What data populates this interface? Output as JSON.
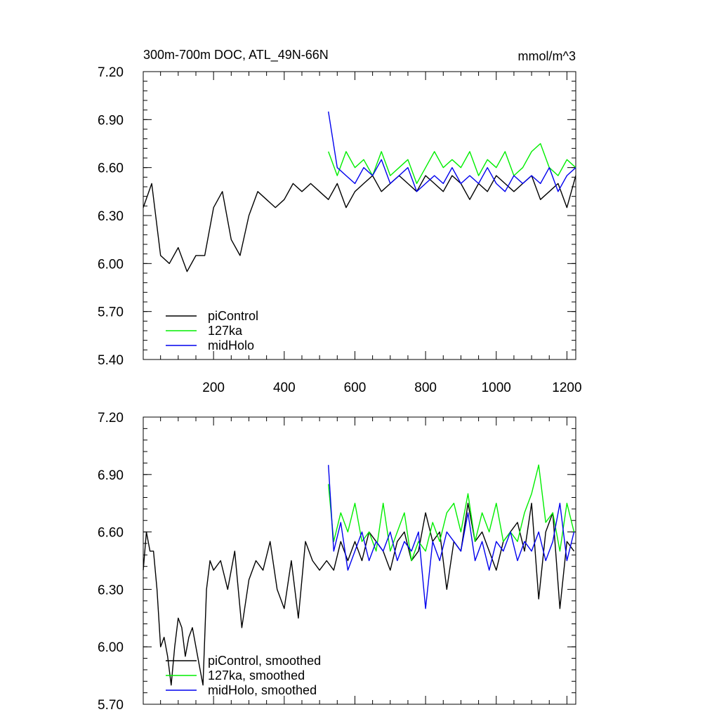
{
  "chart_data": [
    {
      "type": "line",
      "title": "300m-700m DOC, ATL_49N-66N",
      "units": "mmol/m^3",
      "xlim": [
        1,
        1225
      ],
      "ylim": [
        5.4,
        7.2
      ],
      "xticks": [
        200,
        400,
        600,
        800,
        1000,
        1200
      ],
      "xtick_labels": [
        "200",
        "400",
        "600",
        "800",
        "1000",
        "1200"
      ],
      "yticks": [
        5.4,
        5.7,
        6.0,
        6.3,
        6.6,
        6.9,
        7.2
      ],
      "ytick_labels": [
        "5.40",
        "5.70",
        "6.00",
        "6.30",
        "6.60",
        "6.90",
        "7.20"
      ],
      "legend": "bottom-left",
      "series": [
        {
          "name": "piControl",
          "color": "#000000",
          "x": [
            1,
            25,
            50,
            75,
            100,
            125,
            150,
            175,
            200,
            225,
            250,
            275,
            300,
            325,
            350,
            375,
            400,
            425,
            450,
            475,
            500,
            525,
            550,
            575,
            600,
            625,
            650,
            675,
            700,
            725,
            750,
            775,
            800,
            825,
            850,
            875,
            900,
            925,
            950,
            975,
            1000,
            1025,
            1050,
            1075,
            1100,
            1125,
            1150,
            1175,
            1200,
            1225
          ],
          "values": [
            6.35,
            6.5,
            6.05,
            6.0,
            6.1,
            5.95,
            6.05,
            6.05,
            6.35,
            6.45,
            6.15,
            6.05,
            6.3,
            6.45,
            6.4,
            6.35,
            6.4,
            6.5,
            6.45,
            6.5,
            6.45,
            6.4,
            6.5,
            6.35,
            6.45,
            6.5,
            6.55,
            6.45,
            6.5,
            6.55,
            6.5,
            6.45,
            6.55,
            6.5,
            6.45,
            6.55,
            6.5,
            6.4,
            6.5,
            6.45,
            6.55,
            6.5,
            6.45,
            6.5,
            6.55,
            6.4,
            6.45,
            6.5,
            6.35,
            6.55
          ]
        },
        {
          "name": "127ka",
          "color": "#00ee00",
          "x": [
            525,
            550,
            575,
            600,
            625,
            650,
            675,
            700,
            725,
            750,
            775,
            800,
            825,
            850,
            875,
            900,
            925,
            950,
            975,
            1000,
            1025,
            1050,
            1075,
            1100,
            1125,
            1150,
            1175,
            1200,
            1225
          ],
          "values": [
            6.7,
            6.55,
            6.7,
            6.6,
            6.65,
            6.55,
            6.7,
            6.55,
            6.6,
            6.65,
            6.5,
            6.6,
            6.7,
            6.6,
            6.65,
            6.6,
            6.7,
            6.55,
            6.65,
            6.6,
            6.7,
            6.55,
            6.6,
            6.7,
            6.75,
            6.6,
            6.55,
            6.65,
            6.6
          ]
        },
        {
          "name": "midHolo",
          "color": "#0000ee",
          "x": [
            525,
            550,
            575,
            600,
            625,
            650,
            675,
            700,
            725,
            750,
            775,
            800,
            825,
            850,
            875,
            900,
            925,
            950,
            975,
            1000,
            1025,
            1050,
            1075,
            1100,
            1125,
            1150,
            1175,
            1200,
            1225
          ],
          "values": [
            6.95,
            6.6,
            6.55,
            6.5,
            6.6,
            6.55,
            6.65,
            6.5,
            6.55,
            6.6,
            6.45,
            6.5,
            6.55,
            6.5,
            6.6,
            6.5,
            6.55,
            6.5,
            6.6,
            6.5,
            6.45,
            6.55,
            6.5,
            6.55,
            6.5,
            6.6,
            6.45,
            6.55,
            6.6
          ]
        }
      ]
    },
    {
      "type": "line",
      "xlim": [
        1,
        1225
      ],
      "ylim": [
        5.7,
        7.2
      ],
      "xticks": [
        200,
        400,
        600,
        800,
        1000,
        1200
      ],
      "yticks": [
        5.7,
        6.0,
        6.3,
        6.6,
        6.9,
        7.2
      ],
      "ytick_labels": [
        "5.70",
        "6.00",
        "6.30",
        "6.60",
        "6.90",
        "7.20"
      ],
      "legend": "bottom-left",
      "series": [
        {
          "name": "piControl, smoothed",
          "color": "#000000",
          "x": [
            1,
            10,
            20,
            30,
            40,
            50,
            60,
            70,
            80,
            90,
            100,
            110,
            120,
            130,
            140,
            150,
            160,
            170,
            180,
            190,
            200,
            220,
            240,
            260,
            280,
            300,
            320,
            340,
            360,
            380,
            400,
            420,
            440,
            460,
            480,
            500,
            520,
            540,
            560,
            580,
            600,
            620,
            640,
            660,
            680,
            700,
            720,
            740,
            760,
            780,
            800,
            820,
            840,
            860,
            880,
            900,
            920,
            940,
            960,
            980,
            1000,
            1020,
            1040,
            1060,
            1080,
            1100,
            1120,
            1140,
            1160,
            1180,
            1200,
            1220
          ],
          "values": [
            6.4,
            6.6,
            6.5,
            6.5,
            6.3,
            6.0,
            6.05,
            5.95,
            5.8,
            6.0,
            6.15,
            6.1,
            5.95,
            6.05,
            6.1,
            6.0,
            5.9,
            5.8,
            6.3,
            6.45,
            6.4,
            6.45,
            6.3,
            6.5,
            6.1,
            6.35,
            6.45,
            6.4,
            6.55,
            6.3,
            6.2,
            6.45,
            6.15,
            6.55,
            6.45,
            6.4,
            6.45,
            6.4,
            6.55,
            6.45,
            6.55,
            6.45,
            6.6,
            6.55,
            6.5,
            6.4,
            6.55,
            6.6,
            6.45,
            6.5,
            6.7,
            6.55,
            6.6,
            6.3,
            6.55,
            6.5,
            6.75,
            6.55,
            6.6,
            6.5,
            6.4,
            6.55,
            6.6,
            6.65,
            6.5,
            6.75,
            6.25,
            6.6,
            6.7,
            6.2,
            6.55,
            6.5
          ]
        },
        {
          "name": "127ka, smoothed",
          "color": "#00ee00",
          "x": [
            525,
            540,
            560,
            580,
            600,
            620,
            640,
            660,
            680,
            700,
            720,
            740,
            760,
            780,
            800,
            820,
            840,
            860,
            880,
            900,
            920,
            940,
            960,
            980,
            1000,
            1020,
            1040,
            1060,
            1080,
            1100,
            1120,
            1140,
            1160,
            1180,
            1200,
            1220
          ],
          "values": [
            6.85,
            6.55,
            6.7,
            6.6,
            6.75,
            6.55,
            6.6,
            6.5,
            6.75,
            6.5,
            6.6,
            6.7,
            6.45,
            6.55,
            6.5,
            6.65,
            6.55,
            6.7,
            6.75,
            6.6,
            6.8,
            6.55,
            6.7,
            6.6,
            6.75,
            6.55,
            6.6,
            6.55,
            6.7,
            6.8,
            6.95,
            6.65,
            6.7,
            6.5,
            6.75,
            6.6
          ]
        },
        {
          "name": "midHolo, smoothed",
          "color": "#0000ee",
          "x": [
            525,
            540,
            560,
            580,
            600,
            620,
            640,
            660,
            680,
            700,
            720,
            740,
            760,
            780,
            800,
            820,
            840,
            860,
            880,
            900,
            920,
            940,
            960,
            980,
            1000,
            1020,
            1040,
            1060,
            1080,
            1100,
            1120,
            1140,
            1160,
            1180,
            1200,
            1220
          ],
          "values": [
            6.95,
            6.5,
            6.65,
            6.4,
            6.5,
            6.6,
            6.45,
            6.55,
            6.5,
            6.6,
            6.45,
            6.55,
            6.5,
            6.6,
            6.2,
            6.55,
            6.45,
            6.6,
            6.55,
            6.5,
            6.7,
            6.45,
            6.55,
            6.4,
            6.55,
            6.5,
            6.6,
            6.45,
            6.55,
            6.5,
            6.6,
            6.45,
            6.55,
            6.75,
            6.45,
            6.6
          ]
        }
      ]
    }
  ]
}
